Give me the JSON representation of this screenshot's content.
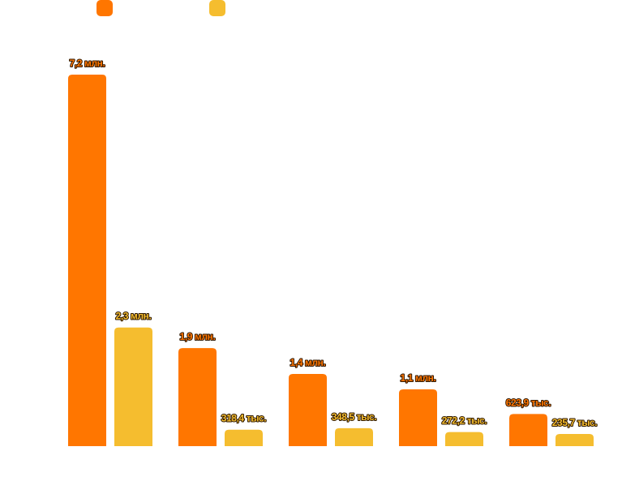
{
  "chart_data": {
    "type": "bar",
    "categories": [
      "",
      "",
      "",
      "",
      ""
    ],
    "series": [
      {
        "name": "",
        "color": "#ff7600",
        "values": [
          7200000,
          1900000,
          1400000,
          1100000,
          623900
        ],
        "labels": [
          "7,2 млн.",
          "1,9 млн.",
          "1,4 млн.",
          "1,1 млн.",
          "623,9 тыс."
        ]
      },
      {
        "name": "",
        "color": "#f5bd2f",
        "values": [
          2300000,
          318400,
          348500,
          272200,
          235700
        ],
        "labels": [
          "2,3 млн.",
          "318,4 тыс.",
          "348,5 тыс.",
          "272,2 тыс.",
          "235,7 тыс."
        ]
      }
    ],
    "ylim": [
      0,
      7200000
    ],
    "grid": false,
    "legend": "top-left",
    "title": "",
    "xlabel": "",
    "ylabel": ""
  }
}
